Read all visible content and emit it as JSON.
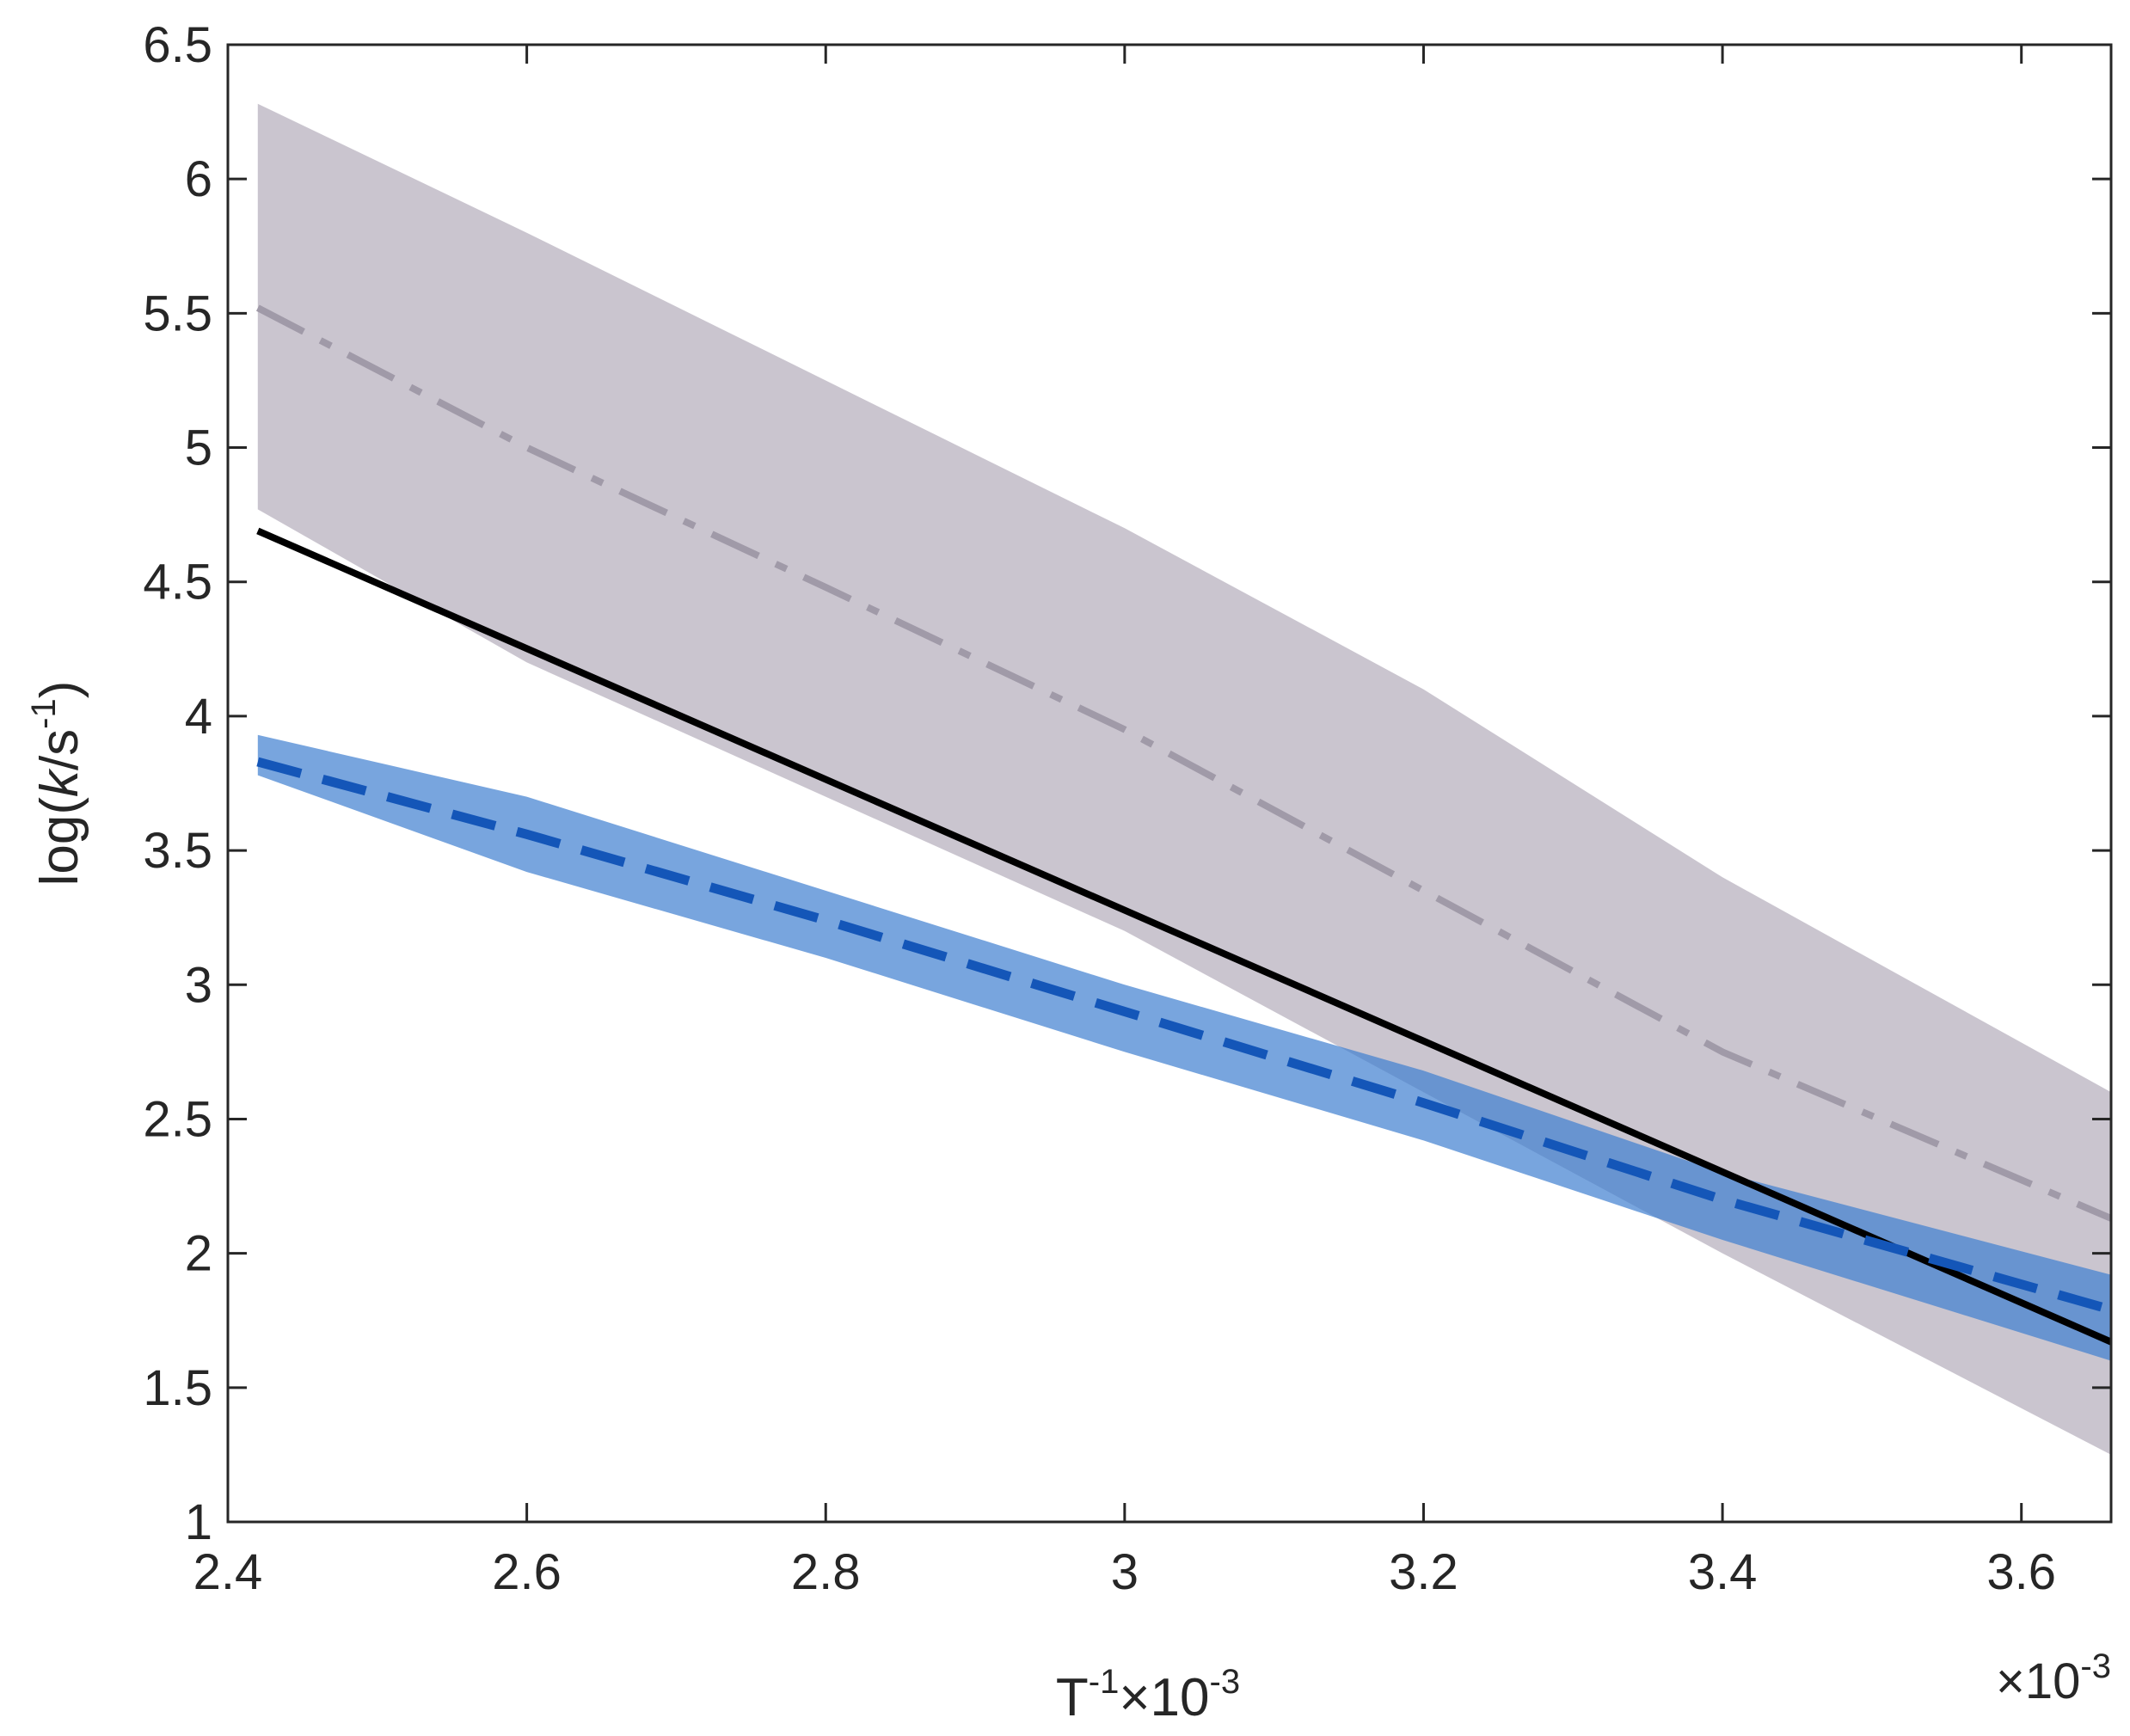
{
  "chart_data": {
    "type": "line",
    "xlabel_base": "T",
    "xlabel_sup": "-1",
    "xlabel_rest": "×10",
    "xlabel_rest_sup": "-3",
    "x_multiplier_base": "×10",
    "x_multiplier_sup": "-3",
    "ylabel_prefix": "log(",
    "ylabel_italic": "k",
    "ylabel_mid": "/s",
    "ylabel_sup": "-1",
    "ylabel_suffix": ")",
    "xlim": [
      2.4,
      3.66
    ],
    "ylim": [
      1,
      6.5
    ],
    "xticks": [
      2.4,
      2.6,
      2.8,
      3.0,
      3.2,
      3.4,
      3.6
    ],
    "xtick_labels": [
      "2.4",
      "2.6",
      "2.8",
      "3",
      "3.2",
      "3.4",
      "3.6"
    ],
    "yticks": [
      1,
      1.5,
      2,
      2.5,
      3,
      3.5,
      4,
      4.5,
      5,
      5.5,
      6,
      6.5
    ],
    "ytick_labels": [
      "1",
      "1.5",
      "2",
      "2.5",
      "3",
      "3.5",
      "4",
      "4.5",
      "5",
      "5.5",
      "6",
      "6.5"
    ],
    "grid": false,
    "bands": [
      {
        "color": "#c7c2cc",
        "opacity": 0.95,
        "upper": [
          [
            2.42,
            6.28
          ],
          [
            2.6,
            5.8
          ],
          [
            2.8,
            5.25
          ],
          [
            3.0,
            4.7
          ],
          [
            3.2,
            4.1
          ],
          [
            3.4,
            3.4
          ],
          [
            3.66,
            2.6
          ]
        ],
        "lower": [
          [
            2.42,
            4.77
          ],
          [
            2.6,
            4.2
          ],
          [
            2.8,
            3.7
          ],
          [
            3.0,
            3.2
          ],
          [
            3.2,
            2.6
          ],
          [
            3.4,
            2.0
          ],
          [
            3.66,
            1.25
          ]
        ]
      },
      {
        "color": "#3f7fd0",
        "opacity": 0.7,
        "upper": [
          [
            2.42,
            3.93
          ],
          [
            2.6,
            3.7
          ],
          [
            2.8,
            3.35
          ],
          [
            3.0,
            3.0
          ],
          [
            3.2,
            2.68
          ],
          [
            3.4,
            2.3
          ],
          [
            3.66,
            1.92
          ]
        ],
        "lower": [
          [
            2.42,
            3.78
          ],
          [
            2.6,
            3.42
          ],
          [
            2.8,
            3.1
          ],
          [
            3.0,
            2.75
          ],
          [
            3.2,
            2.42
          ],
          [
            3.4,
            2.05
          ],
          [
            3.66,
            1.6
          ]
        ]
      }
    ],
    "series": [
      {
        "style": "dashdot",
        "color": "#a09aa8",
        "points": [
          [
            2.42,
            5.52
          ],
          [
            2.6,
            5.0
          ],
          [
            2.8,
            4.48
          ],
          [
            3.0,
            3.95
          ],
          [
            3.2,
            3.35
          ],
          [
            3.4,
            2.75
          ],
          [
            3.66,
            2.13
          ]
        ]
      },
      {
        "style": "solid",
        "color": "#000000",
        "points": [
          [
            2.42,
            4.69
          ],
          [
            3.66,
            1.67
          ]
        ]
      },
      {
        "style": "dashed",
        "color": "#1456b8",
        "points": [
          [
            2.42,
            3.83
          ],
          [
            2.6,
            3.56
          ],
          [
            2.8,
            3.24
          ],
          [
            3.0,
            2.9
          ],
          [
            3.2,
            2.56
          ],
          [
            3.4,
            2.2
          ],
          [
            3.66,
            1.79
          ]
        ]
      }
    ]
  }
}
